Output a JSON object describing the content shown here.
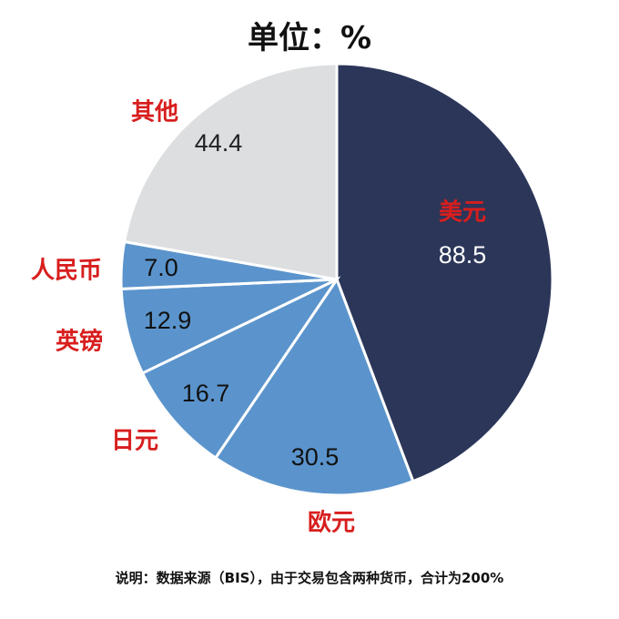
{
  "chart_data": {
    "type": "pie",
    "title": "单位：%",
    "categories": [
      "美元",
      "欧元",
      "日元",
      "英镑",
      "人民币",
      "其他"
    ],
    "values": [
      88.5,
      30.5,
      16.7,
      12.9,
      7.0,
      44.4
    ],
    "value_labels": [
      "88.5",
      "30.5",
      "16.7",
      "12.9",
      "7.0",
      "44.4"
    ],
    "total": 200,
    "colors": [
      "#2b3659",
      "#5b94cc",
      "#5b94cc",
      "#5b94cc",
      "#5b94cc",
      "#dcdee0"
    ],
    "value_label_colors": [
      "#ffffff",
      "#111111",
      "#111111",
      "#111111",
      "#111111",
      "#222222"
    ],
    "category_label_color": "#d81e1e",
    "start_angle": "12 o'clock",
    "direction": "clockwise",
    "footnote": "说明：数据来源（BIS），由于交易包含两种货币，合计为200%"
  }
}
